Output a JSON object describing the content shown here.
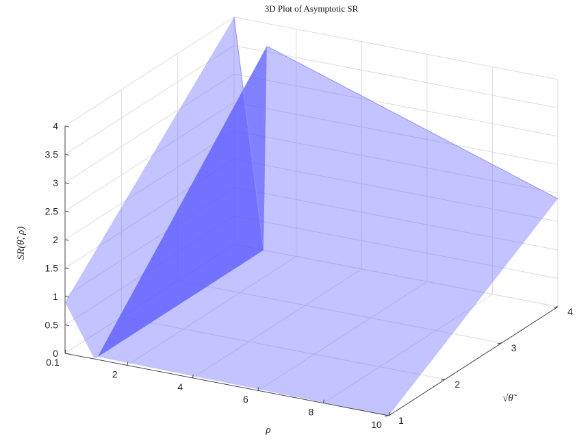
{
  "chart_data": {
    "type": "surface3d",
    "title": "3D Plot of Asymptotic SR",
    "xlabel": "ρ",
    "ylabel": "√θ̃",
    "zlabel": "SR(θ̃, ρ)",
    "xlim": [
      0.1,
      10
    ],
    "ylim": [
      1,
      4
    ],
    "zlim": [
      0,
      4
    ],
    "x_ticks": [
      "0.1",
      "2",
      "4",
      "6",
      "8",
      "10"
    ],
    "y_ticks": [
      "1",
      "2",
      "3",
      "4"
    ],
    "z_ticks": [
      "0",
      "0.5",
      "1",
      "1.5",
      "2",
      "2.5",
      "3",
      "3.5",
      "4"
    ],
    "grid": true,
    "surface_color": "#7b7bff",
    "surface_opacity": 0.45,
    "surface_points": [
      {
        "rho": 0.1,
        "sqrt_theta": 1.0,
        "sr": 0.9
      },
      {
        "rho": 0.1,
        "sqrt_theta": 4.0,
        "sr": 4.0
      },
      {
        "rho": 1.0,
        "sqrt_theta": 1.0,
        "sr": 0.0
      },
      {
        "rho": 1.0,
        "sqrt_theta": 4.0,
        "sr": 0.0
      },
      {
        "rho": 1.1,
        "sqrt_theta": 1.0,
        "sr": 0.05
      },
      {
        "rho": 1.1,
        "sqrt_theta": 4.0,
        "sr": 3.6
      },
      {
        "rho": 10.0,
        "sqrt_theta": 1.0,
        "sr": 0.0
      },
      {
        "rho": 10.0,
        "sqrt_theta": 4.0,
        "sr": 1.9
      }
    ]
  }
}
